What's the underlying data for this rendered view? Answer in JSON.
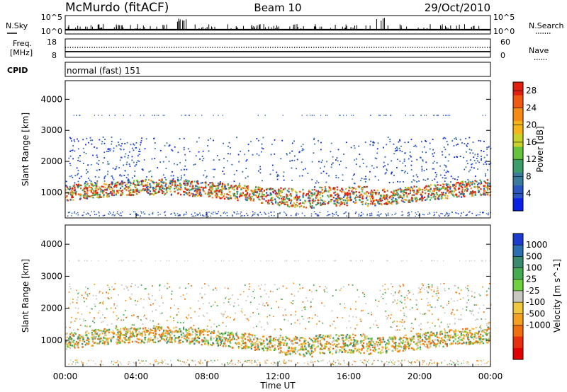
{
  "header": {
    "station": "McMurdo (fitACF)",
    "beam": "Beam 10",
    "date": "29/Oct/2010"
  },
  "status_panels": {
    "nsky_label": "N.Sky",
    "nsky_tick_top": "10^5",
    "nsky_tick_bottom": "10^0",
    "nsearch_label": "N.Search",
    "nsearch_tick_top": "10^5",
    "nsearch_tick_bottom": "10^0",
    "freq_label_1": "Freq.",
    "freq_label_2": "[MHz]",
    "freq_tick_top": "18",
    "freq_tick_bottom": "8",
    "nave_label": "Nave",
    "nave_tick_top": "60",
    "nave_tick_bottom": "0",
    "cpid_label": "CPID",
    "cpid_value": "normal (fast) 151"
  },
  "chart_data": [
    {
      "type": "heatmap",
      "name": "power",
      "ylabel": "Slant Range [km]",
      "ylim": [
        180,
        4600
      ],
      "yticks": [
        "1000",
        "2000",
        "3000",
        "4000"
      ],
      "yticks_values": [
        1000,
        2000,
        3000,
        4000
      ],
      "xlim": [
        0,
        24
      ],
      "colorbar": {
        "label": "Power [dB]",
        "ticks": [
          "4",
          "8",
          "12",
          "16",
          "20",
          "24",
          "28"
        ],
        "ticks_values": [
          4,
          8,
          12,
          16,
          20,
          24,
          28
        ],
        "range": [
          0,
          30
        ],
        "colors": [
          "#0a22e6",
          "#2a56c0",
          "#3a7a9a",
          "#3c9c6a",
          "#67c23f",
          "#c8d22a",
          "#f3b51a",
          "#f58a14",
          "#ee5a14",
          "#e02010"
        ]
      }
    },
    {
      "type": "heatmap",
      "name": "velocity",
      "ylabel": "Slant Range [km]",
      "ylim": [
        180,
        4600
      ],
      "yticks": [
        "1000",
        "2000",
        "3000",
        "4000"
      ],
      "yticks_values": [
        1000,
        2000,
        3000,
        4000
      ],
      "xlim": [
        0,
        24
      ],
      "xlabel": "Time UT",
      "xticks": [
        "00:00",
        "04:00",
        "08:00",
        "12:00",
        "16:00",
        "20:00",
        "00:00"
      ],
      "xticks_values": [
        0,
        4,
        8,
        12,
        16,
        20,
        24
      ],
      "colorbar": {
        "label": "Velocity [m s^-1]",
        "ticks": [
          "1000",
          "500",
          "100",
          "25",
          "-25",
          "-100",
          "-500",
          "-1000"
        ],
        "colors": [
          "#1c3cd0",
          "#2e6eb0",
          "#3a8a70",
          "#45aa50",
          "#70d040",
          "#c8c8c0",
          "#f0c840",
          "#f5a020",
          "#f07010",
          "#e83010",
          "#e00000"
        ]
      }
    }
  ]
}
